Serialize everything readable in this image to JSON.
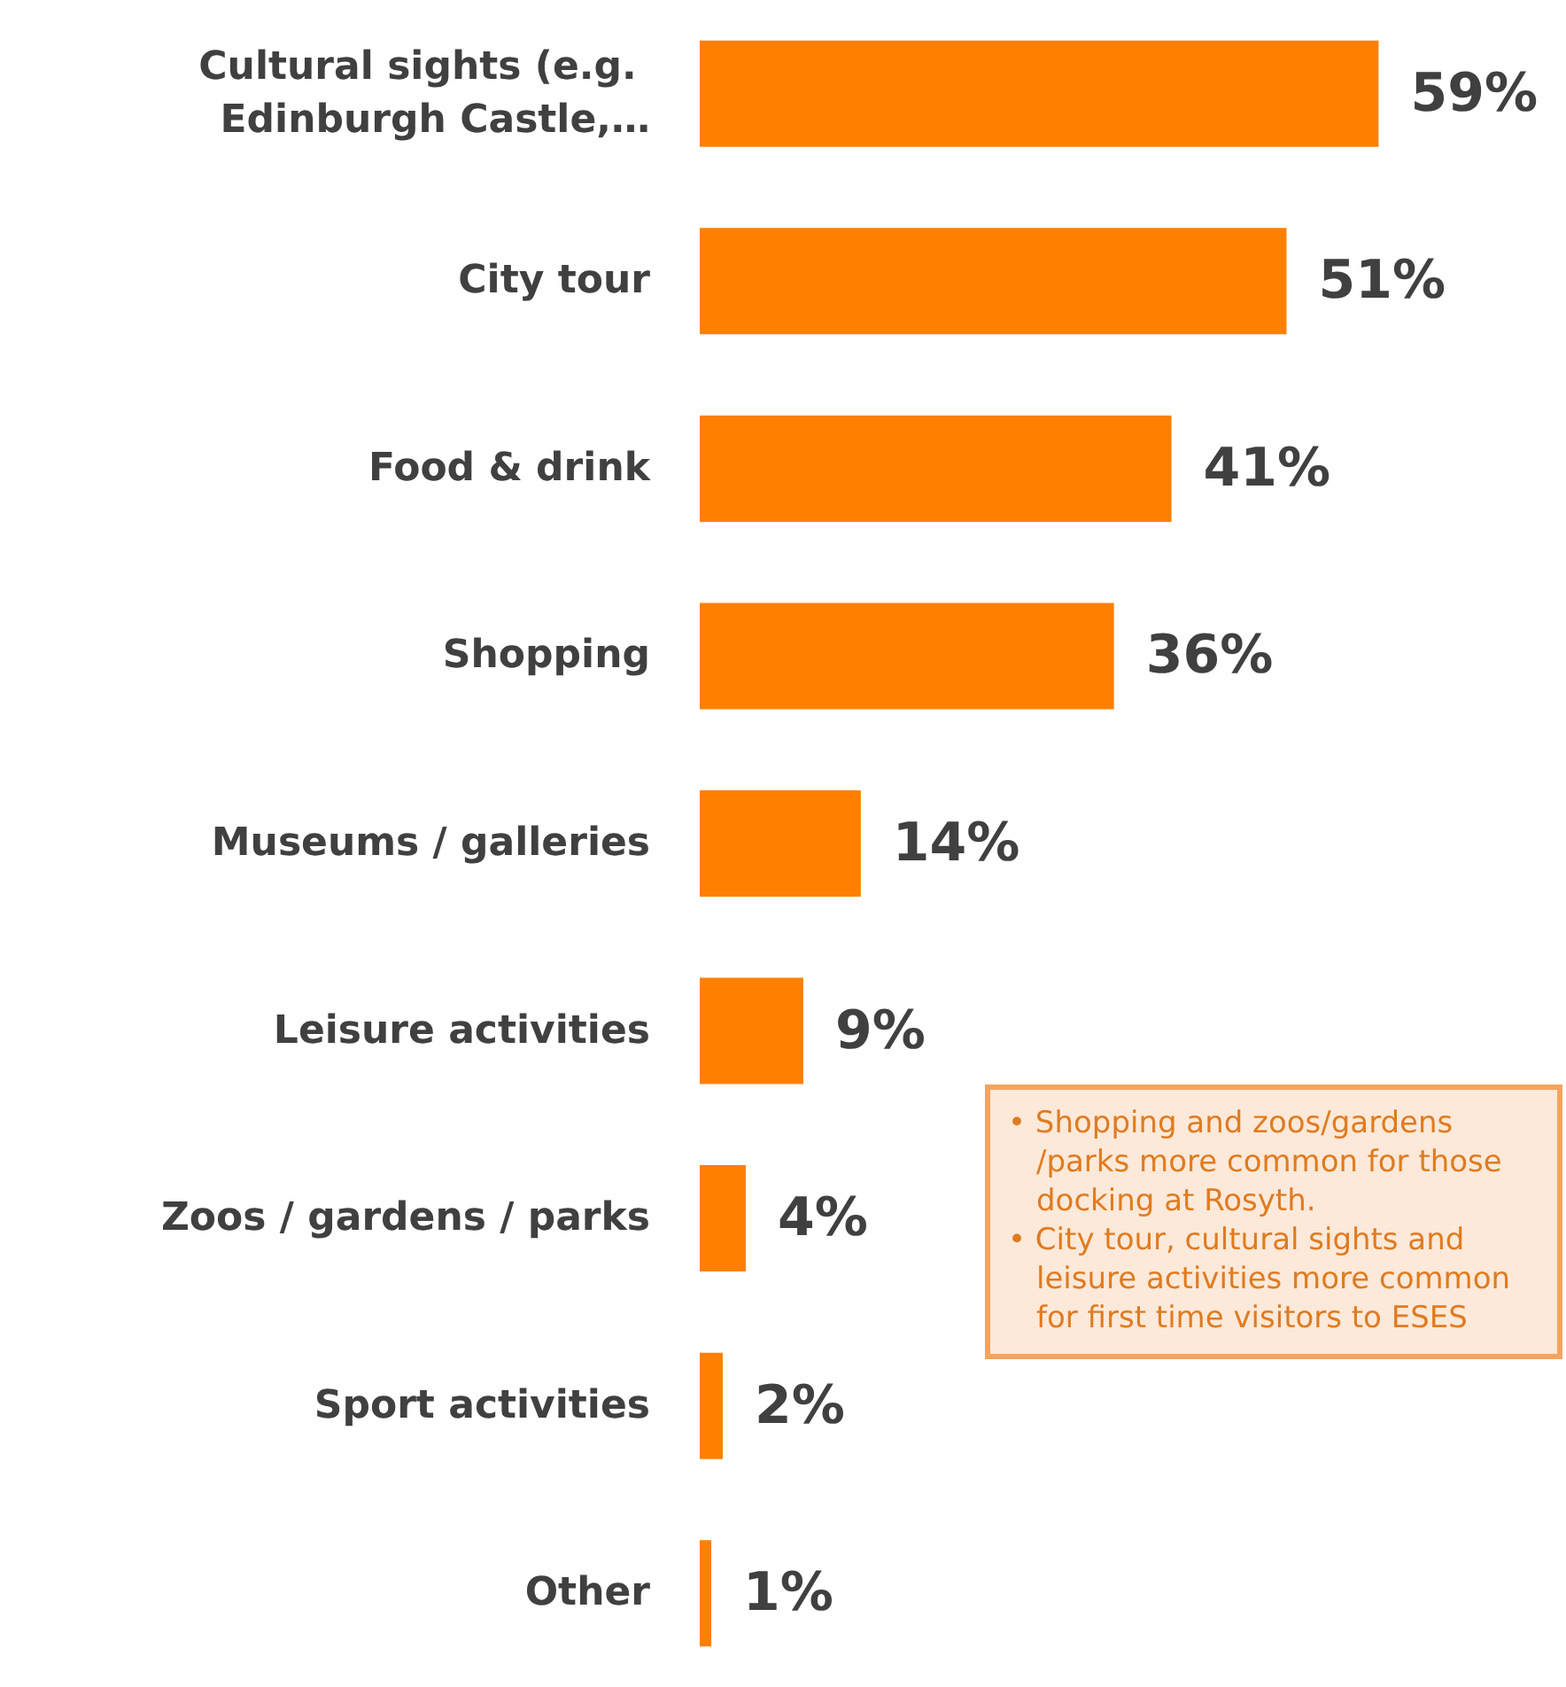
{
  "chart_data": {
    "type": "bar",
    "orientation": "horizontal",
    "categories": [
      "Cultural sights (e.g. Edinburgh Castle,…",
      "City tour",
      "Food & drink",
      "Shopping",
      "Museums / galleries",
      "Leisure activities",
      "Zoos / gardens / parks",
      "Sport activities",
      "Other"
    ],
    "values": [
      59,
      51,
      41,
      36,
      14,
      9,
      4,
      2,
      1
    ],
    "value_labels": [
      "59%",
      "51%",
      "41%",
      "36%",
      "14%",
      "9%",
      "4%",
      "2%",
      "1%"
    ],
    "color": "#ff8000",
    "annotations": [
      "• Shopping and zoos/gardens /parks more common for those docking at Rosyth.",
      "• City tour, cultural sights and leisure activities more common for first time visitors to ESES"
    ]
  }
}
